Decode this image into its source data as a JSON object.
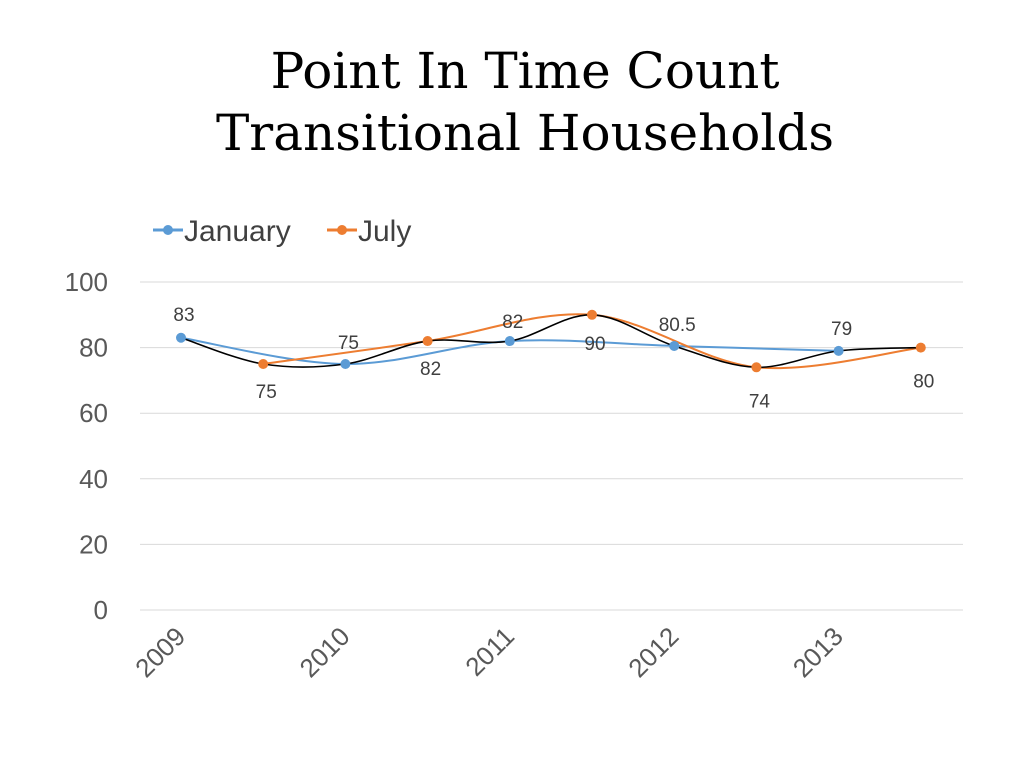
{
  "chart_data": {
    "type": "line",
    "title_lines": [
      "Point In Time Count",
      "Transitional Households"
    ],
    "x": [
      "Jan 2009",
      "Jul 2009",
      "Jan 2010",
      "Jul 2010",
      "Jan 2011",
      "Jul 2011",
      "Jan 2012",
      "Jul 2012",
      "Jan 2013",
      "Jul 2013"
    ],
    "xtick_labels": [
      "2009",
      "2010",
      "2011",
      "2012",
      "2013"
    ],
    "ylim": [
      0,
      100
    ],
    "yticks": [
      0,
      20,
      40,
      60,
      80,
      100
    ],
    "grid": true,
    "legend": "top-left",
    "series": [
      {
        "name": "January",
        "color": "#5B9BD5",
        "values": [
          83,
          null,
          75,
          null,
          82,
          null,
          80.5,
          null,
          79,
          null
        ]
      },
      {
        "name": "July",
        "color": "#ED7D31",
        "values": [
          null,
          75,
          null,
          82,
          null,
          90,
          null,
          74,
          null,
          80
        ]
      }
    ],
    "combined_line": {
      "color": "#000000",
      "values": [
        83,
        75,
        75,
        82,
        82,
        90,
        80.5,
        74,
        79,
        80
      ]
    },
    "data_labels": [
      "83",
      "75",
      "75",
      "82",
      "82",
      "90",
      "80.5",
      "74",
      "79",
      "80"
    ]
  }
}
